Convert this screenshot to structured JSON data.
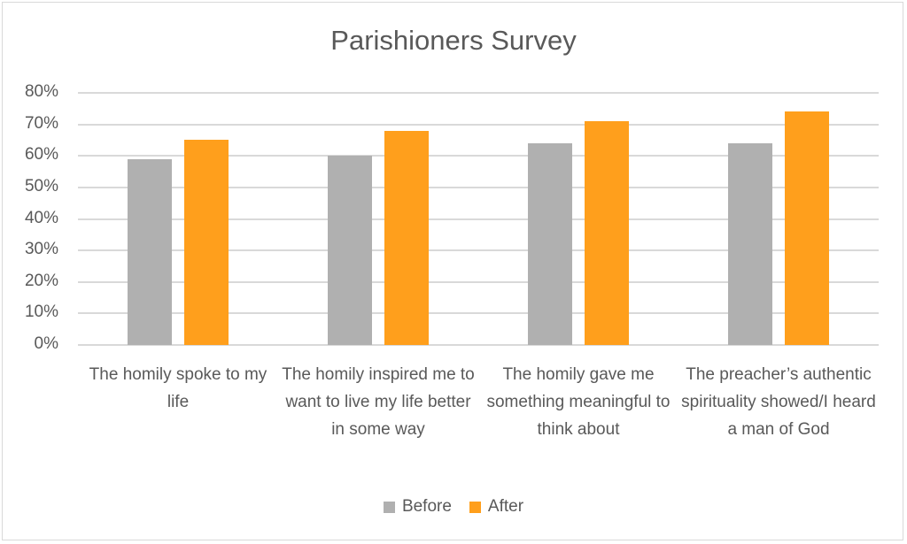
{
  "chart_data": {
    "type": "bar",
    "title": "Parishioners Survey",
    "xlabel": "",
    "ylabel": "",
    "ylim": [
      0,
      0.8
    ],
    "yticks": [
      "0%",
      "10%",
      "20%",
      "30%",
      "40%",
      "50%",
      "60%",
      "70%",
      "80%"
    ],
    "grid": true,
    "legend_position": "bottom",
    "categories": [
      "The homily spoke to my life",
      "The homily inspired me to want to live my life better in some way",
      "The homily gave me something meaningful to think about",
      "The preacher’s authentic spirituality showed/I heard a man of God"
    ],
    "series": [
      {
        "name": "Before",
        "color": "#b0b0b0",
        "values": [
          0.59,
          0.6,
          0.64,
          0.64
        ]
      },
      {
        "name": "After",
        "color": "#ff9f1c",
        "values": [
          0.65,
          0.68,
          0.71,
          0.74
        ]
      }
    ]
  },
  "labels": {
    "title": "Parishioners Survey",
    "yticks": [
      "0%",
      "10%",
      "20%",
      "30%",
      "40%",
      "50%",
      "60%",
      "70%",
      "80%"
    ],
    "categories": [
      "The homily spoke to my life",
      "The homily inspired me to want to live my life better in some way",
      "The homily gave me something meaningful to think about",
      "The preacher’s authentic spirituality showed/I heard a man of God"
    ],
    "legend": [
      "Before",
      "After"
    ]
  }
}
